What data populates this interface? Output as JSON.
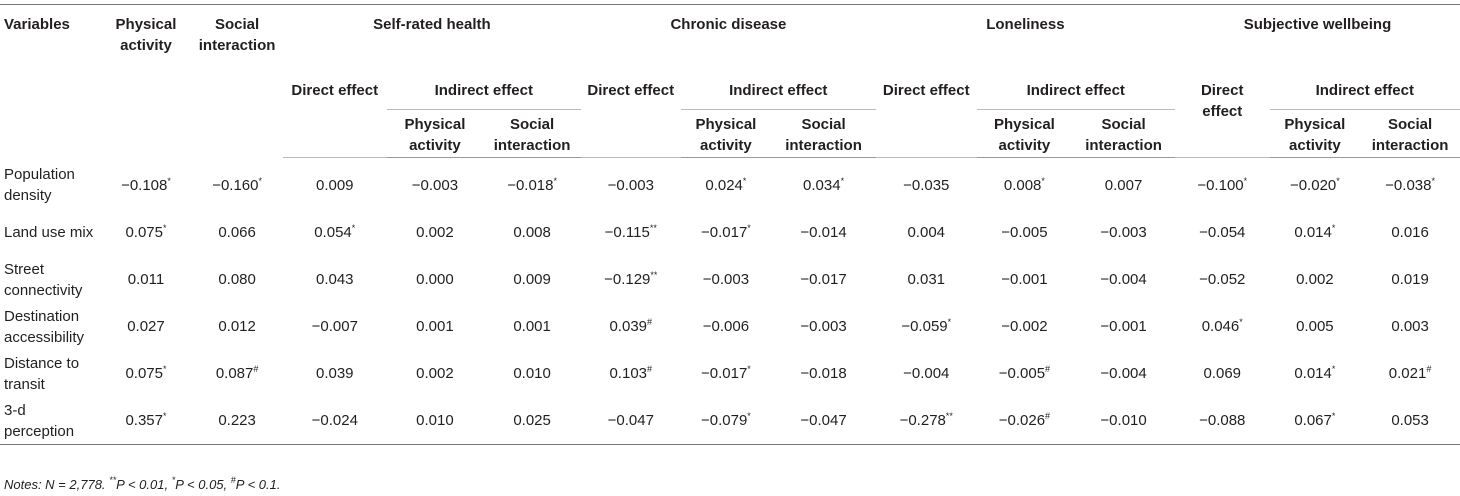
{
  "table": {
    "header": {
      "variables": "Variables",
      "physical_activity": "Physical activity",
      "social_interaction": "Social interaction",
      "outcomes": [
        "Self-rated health",
        "Chronic disease",
        "Loneliness",
        "Subjective wellbeing"
      ],
      "direct_effect": "Direct effect",
      "indirect_effect": "Indirect effect",
      "sub_physical": "Physical activity",
      "sub_social": "Social interaction"
    },
    "rows": [
      {
        "variable": "Population density",
        "cells": [
          {
            "v": "−0.108",
            "sig": "*"
          },
          {
            "v": "−0.160",
            "sig": "*"
          },
          {
            "v": "0.009",
            "sig": ""
          },
          {
            "v": "−0.003",
            "sig": ""
          },
          {
            "v": "−0.018",
            "sig": "*"
          },
          {
            "v": "−0.003",
            "sig": ""
          },
          {
            "v": "0.024",
            "sig": "*"
          },
          {
            "v": "0.034",
            "sig": "*"
          },
          {
            "v": "−0.035",
            "sig": ""
          },
          {
            "v": "0.008",
            "sig": "*"
          },
          {
            "v": "0.007",
            "sig": ""
          },
          {
            "v": "−0.100",
            "sig": "*"
          },
          {
            "v": "−0.020",
            "sig": "*"
          },
          {
            "v": "−0.038",
            "sig": "*"
          }
        ]
      },
      {
        "variable": "Land use mix",
        "cells": [
          {
            "v": "0.075",
            "sig": "*"
          },
          {
            "v": "0.066",
            "sig": ""
          },
          {
            "v": "0.054",
            "sig": "*"
          },
          {
            "v": "0.002",
            "sig": ""
          },
          {
            "v": "0.008",
            "sig": ""
          },
          {
            "v": "−0.115",
            "sig": "**"
          },
          {
            "v": "−0.017",
            "sig": "*"
          },
          {
            "v": "−0.014",
            "sig": ""
          },
          {
            "v": "0.004",
            "sig": ""
          },
          {
            "v": "−0.005",
            "sig": ""
          },
          {
            "v": "−0.003",
            "sig": ""
          },
          {
            "v": "−0.054",
            "sig": ""
          },
          {
            "v": "0.014",
            "sig": "*"
          },
          {
            "v": "0.016",
            "sig": ""
          }
        ]
      },
      {
        "variable": "Street connectivity",
        "cells": [
          {
            "v": "0.011",
            "sig": ""
          },
          {
            "v": "0.080",
            "sig": ""
          },
          {
            "v": "0.043",
            "sig": ""
          },
          {
            "v": "0.000",
            "sig": ""
          },
          {
            "v": "0.009",
            "sig": ""
          },
          {
            "v": "−0.129",
            "sig": "**"
          },
          {
            "v": "−0.003",
            "sig": ""
          },
          {
            "v": "−0.017",
            "sig": ""
          },
          {
            "v": "0.031",
            "sig": ""
          },
          {
            "v": "−0.001",
            "sig": ""
          },
          {
            "v": "−0.004",
            "sig": ""
          },
          {
            "v": "−0.052",
            "sig": ""
          },
          {
            "v": "0.002",
            "sig": ""
          },
          {
            "v": "0.019",
            "sig": ""
          }
        ]
      },
      {
        "variable": "Destination accessibility",
        "cells": [
          {
            "v": "0.027",
            "sig": ""
          },
          {
            "v": "0.012",
            "sig": ""
          },
          {
            "v": "−0.007",
            "sig": ""
          },
          {
            "v": "0.001",
            "sig": ""
          },
          {
            "v": "0.001",
            "sig": ""
          },
          {
            "v": "0.039",
            "sig": "#"
          },
          {
            "v": "−0.006",
            "sig": ""
          },
          {
            "v": "−0.003",
            "sig": ""
          },
          {
            "v": "−0.059",
            "sig": "*"
          },
          {
            "v": "−0.002",
            "sig": ""
          },
          {
            "v": "−0.001",
            "sig": ""
          },
          {
            "v": "0.046",
            "sig": "*"
          },
          {
            "v": "0.005",
            "sig": ""
          },
          {
            "v": "0.003",
            "sig": ""
          }
        ]
      },
      {
        "variable": "Distance to transit",
        "cells": [
          {
            "v": "0.075",
            "sig": "*"
          },
          {
            "v": "0.087",
            "sig": "#"
          },
          {
            "v": "0.039",
            "sig": ""
          },
          {
            "v": "0.002",
            "sig": ""
          },
          {
            "v": "0.010",
            "sig": ""
          },
          {
            "v": "0.103",
            "sig": "#"
          },
          {
            "v": "−0.017",
            "sig": "*"
          },
          {
            "v": "−0.018",
            "sig": ""
          },
          {
            "v": "−0.004",
            "sig": ""
          },
          {
            "v": "−0.005",
            "sig": "#"
          },
          {
            "v": "−0.004",
            "sig": ""
          },
          {
            "v": "0.069",
            "sig": ""
          },
          {
            "v": "0.014",
            "sig": "*"
          },
          {
            "v": "0.021",
            "sig": "#"
          }
        ]
      },
      {
        "variable": "3-d perception",
        "cells": [
          {
            "v": "0.357",
            "sig": "*"
          },
          {
            "v": "0.223",
            "sig": ""
          },
          {
            "v": "−0.024",
            "sig": ""
          },
          {
            "v": "0.010",
            "sig": ""
          },
          {
            "v": "0.025",
            "sig": ""
          },
          {
            "v": "−0.047",
            "sig": ""
          },
          {
            "v": "−0.079",
            "sig": "*"
          },
          {
            "v": "−0.047",
            "sig": ""
          },
          {
            "v": "−0.278",
            "sig": "**"
          },
          {
            "v": "−0.026",
            "sig": "#"
          },
          {
            "v": "−0.010",
            "sig": ""
          },
          {
            "v": "−0.088",
            "sig": ""
          },
          {
            "v": "0.067",
            "sig": "*"
          },
          {
            "v": "0.053",
            "sig": ""
          }
        ]
      }
    ]
  },
  "notes": {
    "prefix": "Notes: N = 2,778.",
    "items": [
      {
        "mark": "**",
        "text": "P < 0.01,"
      },
      {
        "mark": "*",
        "text": "P < 0.05,"
      },
      {
        "mark": "#",
        "text": "P < 0.1."
      }
    ]
  }
}
